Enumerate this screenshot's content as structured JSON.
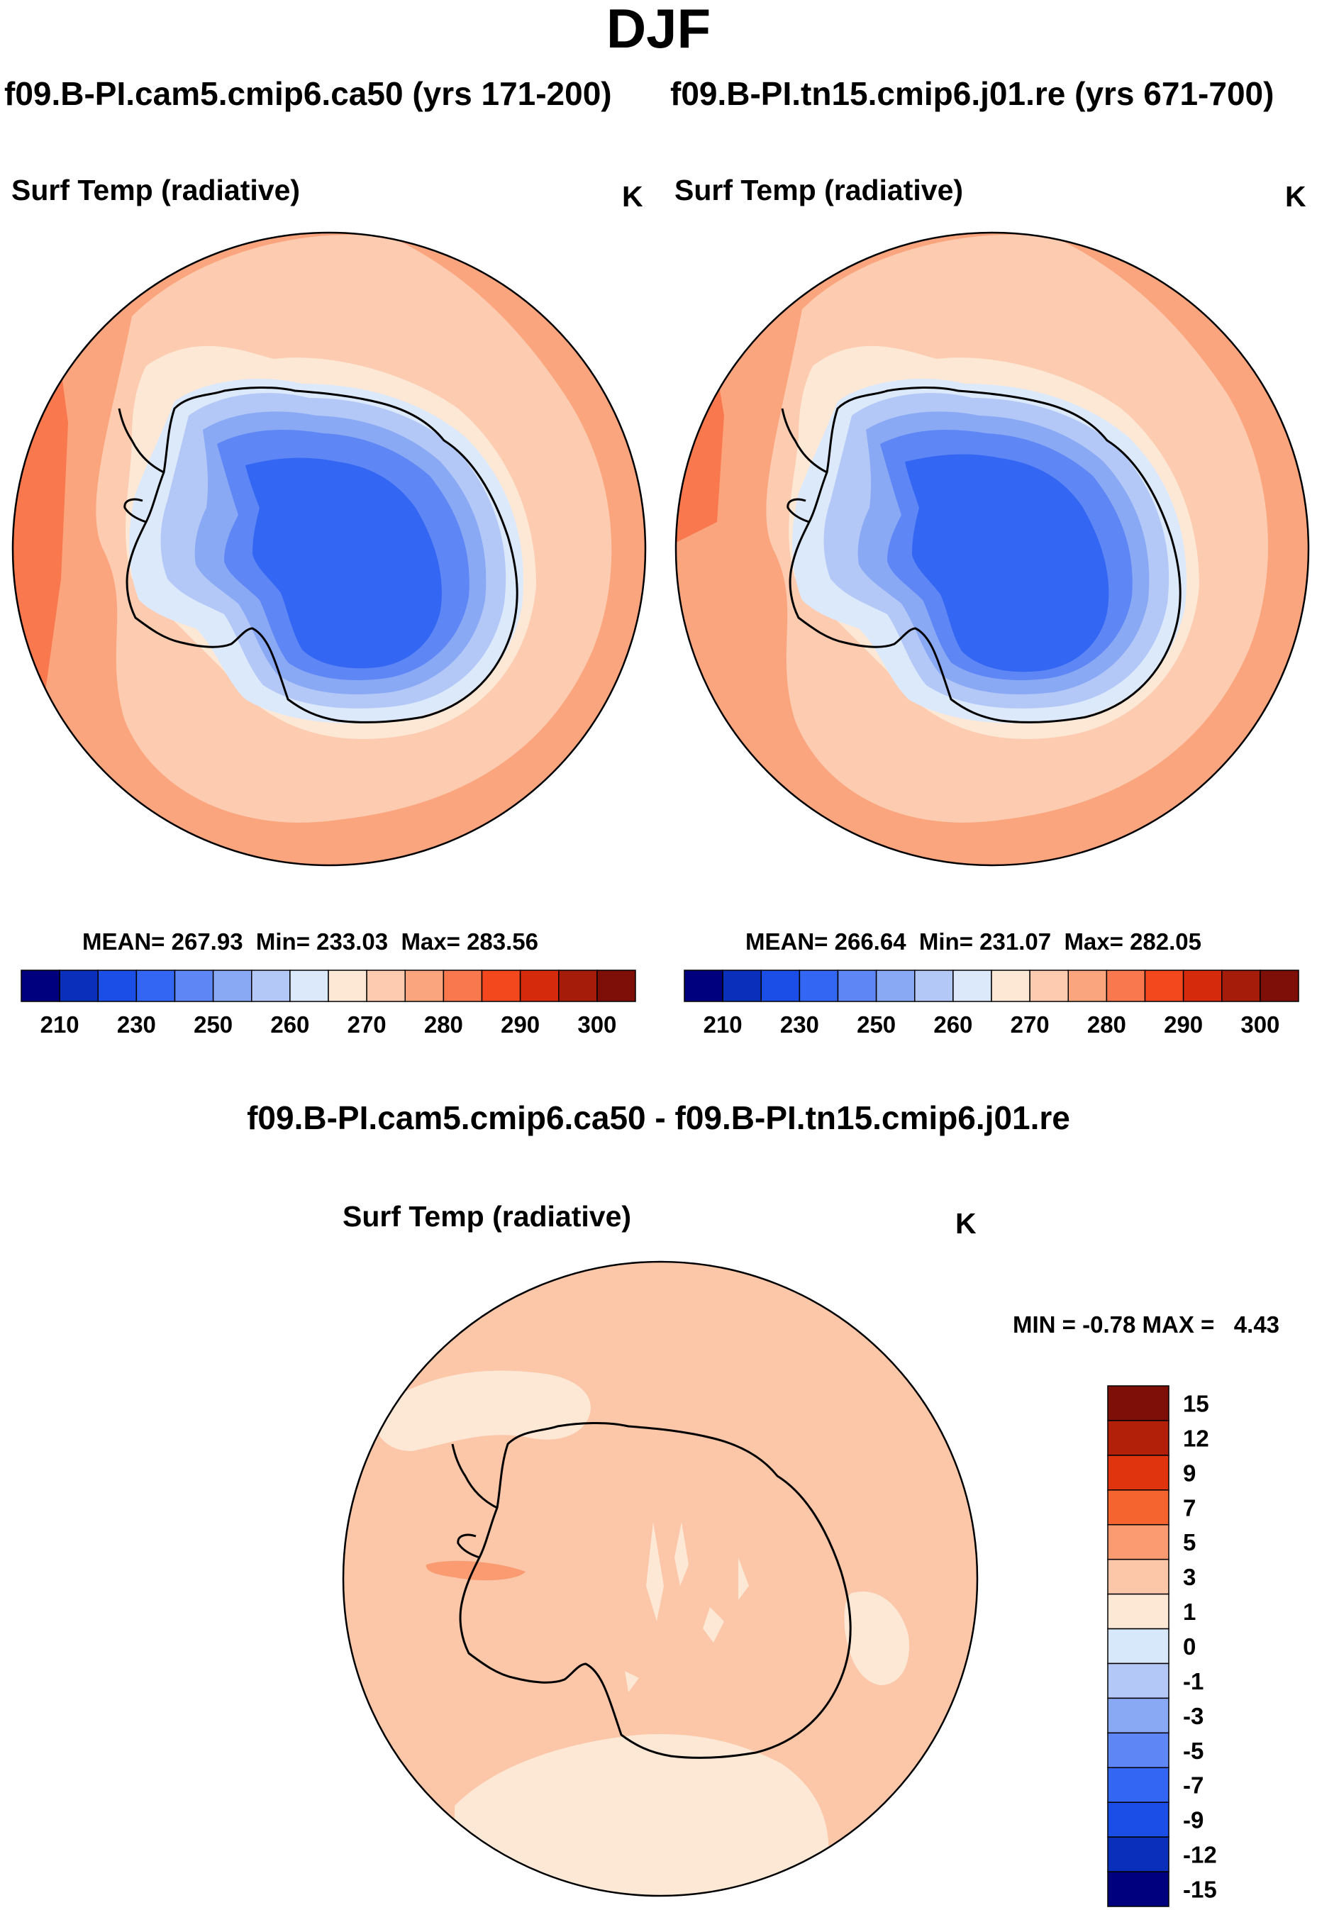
{
  "figure": {
    "title": "DJF",
    "left_run": "f09.B-PI.cam5.cmip6.ca50 (yrs 171-200)",
    "right_run": "f09.B-PI.tn15.cmip6.j01.re (yrs 671-700)",
    "diff_title": "f09.B-PI.cam5.cmip6.ca50 - f09.B-PI.tn15.cmip6.j01.re"
  },
  "chart_data": [
    {
      "type": "heatmap",
      "projection": "south-polar stereographic",
      "title": "Surf Temp (radiative)",
      "units": "K",
      "run": "f09.B-PI.cam5.cmip6.ca50 (yrs 171-200)",
      "stats": {
        "mean_label": "MEAN=",
        "mean": "267.93",
        "min_label": "Min=",
        "min": "233.03",
        "max_label": "Max=",
        "max": "283.56"
      },
      "levels": [
        210,
        220,
        230,
        240,
        250,
        255,
        260,
        265,
        270,
        275,
        280,
        285,
        290,
        295,
        300
      ],
      "tick_labels": [
        "210",
        "230",
        "250",
        "260",
        "270",
        "280",
        "290",
        "300"
      ],
      "colorbar": [
        "#00007f",
        "#0a2fba",
        "#1a4ee6",
        "#3366f2",
        "#5e86f5",
        "#8aa9f5",
        "#b3c8f7",
        "#dce9fb",
        "#fde8d6",
        "#fccbb0",
        "#fba57e",
        "#f9784e",
        "#f3481e",
        "#d52a0c",
        "#a51c0a",
        "#7d0e08"
      ],
      "region_colors": {
        "ocean_far": "#fba57e",
        "ocean_near": "#fccbb0",
        "coast": "#fde8d6",
        "warm_edge": "#f9784e",
        "ice_rim": "#dce9fb",
        "ice_outer": "#b3c8f7",
        "ice_mid": "#8aa9f5",
        "ice_inner": "#5e86f5",
        "plateau": "#3366f2"
      }
    },
    {
      "type": "heatmap",
      "projection": "south-polar stereographic",
      "title": "Surf Temp (radiative)",
      "units": "K",
      "run": "f09.B-PI.tn15.cmip6.j01.re (yrs 671-700)",
      "stats": {
        "mean_label": "MEAN=",
        "mean": "266.64",
        "min_label": "Min=",
        "min": "231.07",
        "max_label": "Max=",
        "max": "282.05"
      },
      "levels": [
        210,
        220,
        230,
        240,
        250,
        255,
        260,
        265,
        270,
        275,
        280,
        285,
        290,
        295,
        300
      ],
      "tick_labels": [
        "210",
        "230",
        "250",
        "260",
        "270",
        "280",
        "290",
        "300"
      ],
      "colorbar": [
        "#00007f",
        "#0a2fba",
        "#1a4ee6",
        "#3366f2",
        "#5e86f5",
        "#8aa9f5",
        "#b3c8f7",
        "#dce9fb",
        "#fde8d6",
        "#fccbb0",
        "#fba57e",
        "#f9784e",
        "#f3481e",
        "#d52a0c",
        "#a51c0a",
        "#7d0e08"
      ],
      "region_colors": {
        "ocean_far": "#fba57e",
        "ocean_near": "#fccbb0",
        "coast": "#fde8d6",
        "warm_edge": "#f9784e",
        "ice_rim": "#dce9fb",
        "ice_outer": "#b3c8f7",
        "ice_mid": "#8aa9f5",
        "ice_inner": "#5e86f5",
        "plateau": "#3366f2"
      }
    },
    {
      "type": "heatmap",
      "projection": "south-polar stereographic",
      "title": "Surf Temp (radiative)",
      "units": "K",
      "run": "f09.B-PI.cam5.cmip6.ca50 - f09.B-PI.tn15.cmip6.j01.re",
      "min_label": "MIN =",
      "min": "-0.78",
      "max_label": "MAX =",
      "max": "4.43",
      "levels": [
        -15,
        -12,
        -9,
        -7,
        -5,
        -3,
        -1,
        0,
        1,
        3,
        5,
        7,
        9,
        12,
        15
      ],
      "tick_labels": [
        "15",
        "12",
        "9",
        "7",
        "5",
        "3",
        "1",
        "0",
        "-1",
        "-3",
        "-5",
        "-7",
        "-9",
        "-12",
        "-15"
      ],
      "colorbar_top_to_bottom": [
        "#7d0e08",
        "#b3200a",
        "#e0340f",
        "#f5642f",
        "#fa9b72",
        "#fcc6a8",
        "#fde8d6",
        "#d8e8fb",
        "#b3c8f7",
        "#8aa9f5",
        "#5e86f5",
        "#3366f2",
        "#1a4ee6",
        "#0a2fba",
        "#00007f"
      ],
      "region_colors": {
        "background": "#fcc6a8",
        "small_change": "#fde8d6",
        "warm_patch": "#fa9b72"
      }
    }
  ]
}
